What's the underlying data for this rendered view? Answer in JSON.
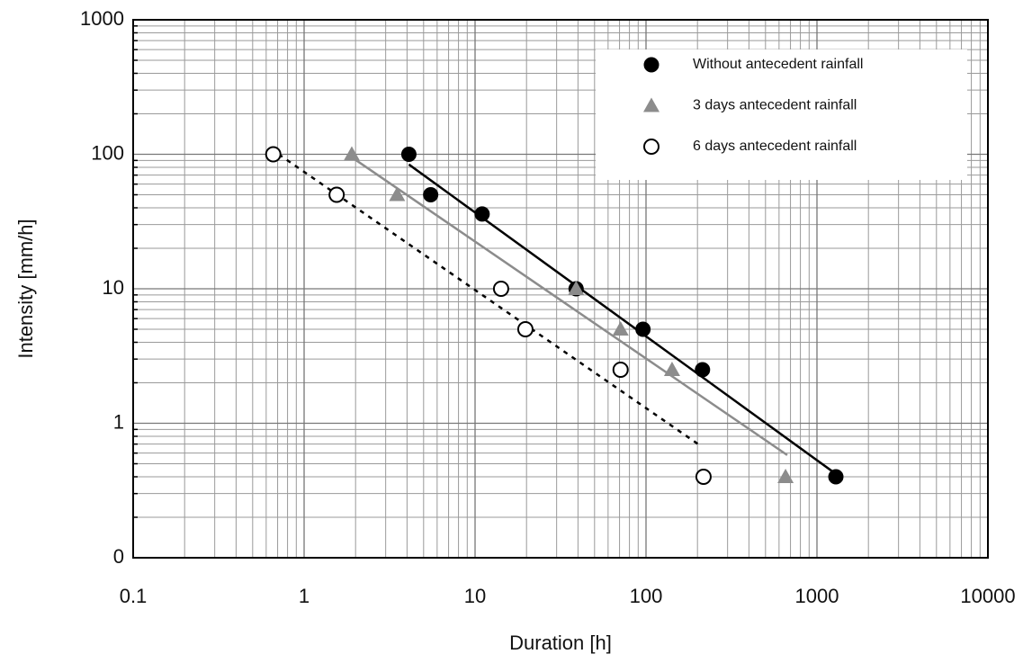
{
  "chart_data": {
    "type": "scatter",
    "x_label": "Duration [h]",
    "y_label": "Intensity [mm/h]",
    "xscale": "log",
    "yscale": "log",
    "grid": true,
    "legend": "upper right",
    "xlim": [
      0.1,
      10000
    ],
    "ylim": [
      0.1,
      1000
    ],
    "xticks": [
      0.1,
      1,
      10,
      100,
      1000,
      10000
    ],
    "yticks": [
      1000,
      100,
      10,
      1,
      {
        "value": 0.1,
        "label": "0"
      }
    ],
    "series": [
      {
        "name": "Without antecedent rainfall",
        "color": "#000000",
        "marker": "filled-circle",
        "line": "solid",
        "x": [
          4.1,
          5.5,
          11,
          39,
          96,
          214,
          1290
        ],
        "values": [
          100,
          50,
          36,
          10,
          5,
          2.5,
          0.4
        ],
        "fit": {
          "x": [
            4.1,
            1290
          ],
          "y": [
            84,
            0.42
          ]
        }
      },
      {
        "name": "3 days antecedent rainfall",
        "color": "#8c8c8c",
        "marker": "triangle",
        "line": "solid",
        "x": [
          1.9,
          3.5,
          39,
          71,
          142,
          655
        ],
        "values": [
          100,
          50,
          10,
          5,
          2.5,
          0.4
        ],
        "fit": {
          "x": [
            1.9,
            670
          ],
          "y": [
            95,
            0.58
          ]
        }
      },
      {
        "name": "6 days antecedent rainfall",
        "color": "#000000",
        "marker": "open-circle",
        "line": "dotted",
        "x": [
          0.66,
          1.55,
          14.2,
          19.7,
          71,
          217
        ],
        "values": [
          100,
          50,
          10,
          5,
          2.5,
          0.4
        ],
        "fit": {
          "x": [
            0.71,
            212
          ],
          "y": [
            100,
            0.67
          ]
        }
      }
    ]
  }
}
